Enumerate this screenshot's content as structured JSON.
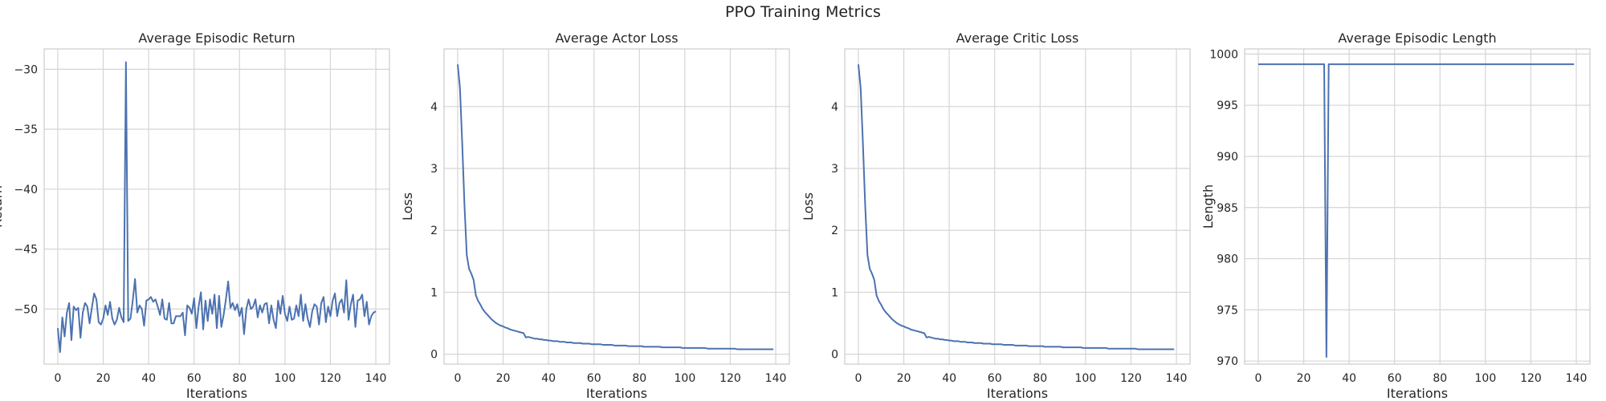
{
  "figure": {
    "title": "PPO Training Metrics"
  },
  "chart_data": [
    {
      "type": "line",
      "title": "Average Episodic Return",
      "xlabel": "Iterations",
      "ylabel": "Return",
      "xlim": [
        -6,
        146
      ],
      "ylim": [
        -54.6,
        -28.3
      ],
      "xticks": [
        0,
        20,
        40,
        60,
        80,
        100,
        120,
        140
      ],
      "yticks": [
        -50,
        -45,
        -40,
        -35,
        -30
      ],
      "grid": true,
      "line_color": "#4c72b0",
      "series": [
        {
          "values": [
            -51.6,
            -53.6,
            -50.7,
            -52.3,
            -50.3,
            -49.5,
            -52.6,
            -49.8,
            -50.1,
            -49.9,
            -52.4,
            -50.3,
            -49.5,
            -49.8,
            -51.2,
            -49.9,
            -48.7,
            -49.2,
            -51.1,
            -51.3,
            -50.8,
            -49.7,
            -50.5,
            -49.4,
            -50.8,
            -51.3,
            -50.9,
            -49.9,
            -50.7,
            -51.1,
            -29.4,
            -51.0,
            -50.8,
            -49.3,
            -47.5,
            -50.3,
            -49.7,
            -50.0,
            -51.4,
            -49.3,
            -49.2,
            -49.0,
            -49.4,
            -49.2,
            -49.8,
            -50.5,
            -49.2,
            -50.8,
            -50.9,
            -49.5,
            -51.2,
            -51.2,
            -50.6,
            -50.6,
            -50.6,
            -50.3,
            -52.2,
            -49.7,
            -49.9,
            -50.4,
            -49.1,
            -51.6,
            -49.8,
            -48.6,
            -51.7,
            -49.3,
            -51.0,
            -49.2,
            -50.4,
            -48.8,
            -51.6,
            -48.9,
            -51.5,
            -50.5,
            -49.2,
            -47.7,
            -49.9,
            -49.5,
            -50.1,
            -49.6,
            -50.6,
            -49.9,
            -52.1,
            -50.0,
            -49.2,
            -50.0,
            -49.8,
            -49.2,
            -50.7,
            -49.7,
            -50.3,
            -49.6,
            -49.5,
            -51.2,
            -49.7,
            -50.9,
            -51.6,
            -49.3,
            -50.4,
            -48.9,
            -50.4,
            -51.0,
            -49.8,
            -50.9,
            -50.8,
            -49.7,
            -50.6,
            -48.8,
            -51.0,
            -49.6,
            -50.8,
            -51.5,
            -50.2,
            -49.6,
            -49.8,
            -51.3,
            -49.5,
            -49.0,
            -51.1,
            -49.8,
            -50.6,
            -49.3,
            -48.7,
            -50.6,
            -49.5,
            -49.2,
            -50.3,
            -47.6,
            -50.9,
            -49.6,
            -48.8,
            -51.5,
            -49.3,
            -49.2,
            -48.8,
            -50.6,
            -49.4,
            -51.3,
            -50.6,
            -50.3,
            -50.2
          ]
        }
      ]
    },
    {
      "type": "line",
      "title": "Average Actor Loss",
      "xlabel": "Iterations",
      "ylabel": "Loss",
      "xlim": [
        -6,
        146
      ],
      "ylim": [
        -0.16,
        4.93
      ],
      "xticks": [
        0,
        20,
        40,
        60,
        80,
        100,
        120,
        140
      ],
      "yticks": [
        0,
        1,
        2,
        3,
        4
      ],
      "grid": true,
      "line_color": "#4c72b0",
      "series": [
        {
          "values": [
            4.68,
            4.3,
            3.4,
            2.4,
            1.6,
            1.38,
            1.3,
            1.2,
            0.95,
            0.86,
            0.8,
            0.73,
            0.68,
            0.64,
            0.6,
            0.56,
            0.53,
            0.5,
            0.48,
            0.46,
            0.45,
            0.43,
            0.42,
            0.4,
            0.39,
            0.38,
            0.37,
            0.36,
            0.35,
            0.34,
            0.27,
            0.28,
            0.27,
            0.26,
            0.25,
            0.25,
            0.24,
            0.24,
            0.23,
            0.23,
            0.22,
            0.22,
            0.21,
            0.21,
            0.21,
            0.2,
            0.2,
            0.2,
            0.19,
            0.19,
            0.19,
            0.18,
            0.18,
            0.18,
            0.18,
            0.17,
            0.17,
            0.17,
            0.17,
            0.16,
            0.16,
            0.16,
            0.16,
            0.16,
            0.15,
            0.15,
            0.15,
            0.15,
            0.15,
            0.14,
            0.14,
            0.14,
            0.14,
            0.14,
            0.14,
            0.13,
            0.13,
            0.13,
            0.13,
            0.13,
            0.13,
            0.13,
            0.12,
            0.12,
            0.12,
            0.12,
            0.12,
            0.12,
            0.12,
            0.12,
            0.11,
            0.11,
            0.11,
            0.11,
            0.11,
            0.11,
            0.11,
            0.11,
            0.11,
            0.1,
            0.1,
            0.1,
            0.1,
            0.1,
            0.1,
            0.1,
            0.1,
            0.1,
            0.1,
            0.1,
            0.09,
            0.09,
            0.09,
            0.09,
            0.09,
            0.09,
            0.09,
            0.09,
            0.09,
            0.09,
            0.09,
            0.09,
            0.09,
            0.08,
            0.08,
            0.08,
            0.08,
            0.08,
            0.08,
            0.08,
            0.08,
            0.08,
            0.08,
            0.08,
            0.08,
            0.08,
            0.08,
            0.08,
            0.08,
            0.08
          ]
        }
      ]
    },
    {
      "type": "line",
      "title": "Average Critic Loss",
      "xlabel": "Iterations",
      "ylabel": "Loss",
      "xlim": [
        -6,
        146
      ],
      "ylim": [
        -0.16,
        4.93
      ],
      "xticks": [
        0,
        20,
        40,
        60,
        80,
        100,
        120,
        140
      ],
      "yticks": [
        0,
        1,
        2,
        3,
        4
      ],
      "grid": true,
      "line_color": "#4c72b0",
      "series": [
        {
          "values": [
            4.68,
            4.3,
            3.4,
            2.4,
            1.6,
            1.38,
            1.3,
            1.2,
            0.95,
            0.86,
            0.8,
            0.73,
            0.68,
            0.64,
            0.6,
            0.56,
            0.53,
            0.5,
            0.48,
            0.46,
            0.45,
            0.43,
            0.42,
            0.4,
            0.39,
            0.38,
            0.37,
            0.36,
            0.35,
            0.34,
            0.27,
            0.28,
            0.27,
            0.26,
            0.25,
            0.25,
            0.24,
            0.24,
            0.23,
            0.23,
            0.22,
            0.22,
            0.21,
            0.21,
            0.21,
            0.2,
            0.2,
            0.2,
            0.19,
            0.19,
            0.19,
            0.18,
            0.18,
            0.18,
            0.18,
            0.17,
            0.17,
            0.17,
            0.17,
            0.16,
            0.16,
            0.16,
            0.16,
            0.16,
            0.15,
            0.15,
            0.15,
            0.15,
            0.15,
            0.14,
            0.14,
            0.14,
            0.14,
            0.14,
            0.14,
            0.13,
            0.13,
            0.13,
            0.13,
            0.13,
            0.13,
            0.13,
            0.12,
            0.12,
            0.12,
            0.12,
            0.12,
            0.12,
            0.12,
            0.12,
            0.11,
            0.11,
            0.11,
            0.11,
            0.11,
            0.11,
            0.11,
            0.11,
            0.11,
            0.1,
            0.1,
            0.1,
            0.1,
            0.1,
            0.1,
            0.1,
            0.1,
            0.1,
            0.1,
            0.1,
            0.09,
            0.09,
            0.09,
            0.09,
            0.09,
            0.09,
            0.09,
            0.09,
            0.09,
            0.09,
            0.09,
            0.09,
            0.09,
            0.08,
            0.08,
            0.08,
            0.08,
            0.08,
            0.08,
            0.08,
            0.08,
            0.08,
            0.08,
            0.08,
            0.08,
            0.08,
            0.08,
            0.08,
            0.08,
            0.08
          ]
        }
      ]
    },
    {
      "type": "line",
      "title": "Average Episodic Length",
      "xlabel": "Iterations",
      "ylabel": "Length",
      "xlim": [
        -6,
        146
      ],
      "ylim": [
        969.7,
        1000.5
      ],
      "xticks": [
        0,
        20,
        40,
        60,
        80,
        100,
        120,
        140
      ],
      "yticks": [
        970,
        975,
        980,
        985,
        990,
        995,
        1000
      ],
      "grid": true,
      "line_color": "#4c72b0",
      "series": [
        {
          "values": [
            999,
            999,
            999,
            999,
            999,
            999,
            999,
            999,
            999,
            999,
            999,
            999,
            999,
            999,
            999,
            999,
            999,
            999,
            999,
            999,
            999,
            999,
            999,
            999,
            999,
            999,
            999,
            999,
            999,
            999,
            970.4,
            999,
            999,
            999,
            999,
            999,
            999,
            999,
            999,
            999,
            999,
            999,
            999,
            999,
            999,
            999,
            999,
            999,
            999,
            999,
            999,
            999,
            999,
            999,
            999,
            999,
            999,
            999,
            999,
            999,
            999,
            999,
            999,
            999,
            999,
            999,
            999,
            999,
            999,
            999,
            999,
            999,
            999,
            999,
            999,
            999,
            999,
            999,
            999,
            999,
            999,
            999,
            999,
            999,
            999,
            999,
            999,
            999,
            999,
            999,
            999,
            999,
            999,
            999,
            999,
            999,
            999,
            999,
            999,
            999,
            999,
            999,
            999,
            999,
            999,
            999,
            999,
            999,
            999,
            999,
            999,
            999,
            999,
            999,
            999,
            999,
            999,
            999,
            999,
            999,
            999,
            999,
            999,
            999,
            999,
            999,
            999,
            999,
            999,
            999,
            999,
            999,
            999,
            999,
            999,
            999,
            999,
            999,
            999,
            999
          ]
        }
      ]
    }
  ]
}
